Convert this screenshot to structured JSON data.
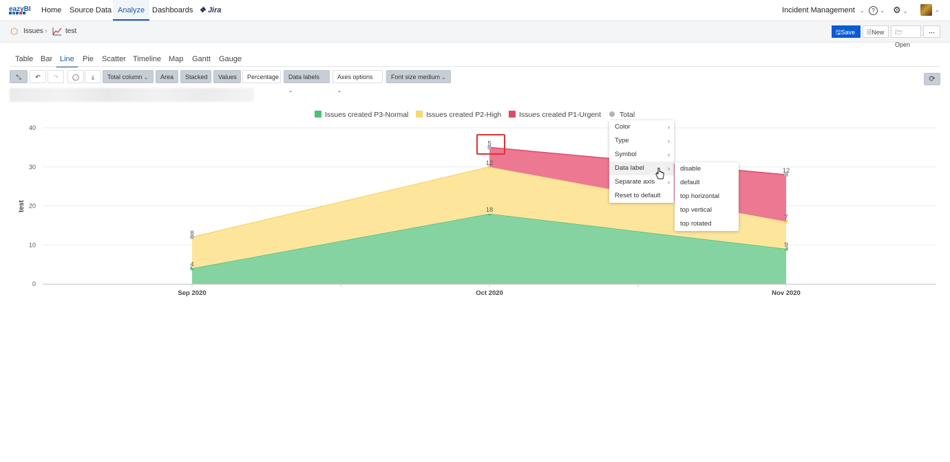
{
  "app": {
    "logo_text": "eazyBI",
    "nav": [
      "Home",
      "Source Data",
      "Analyze",
      "Dashboards",
      "Jira"
    ],
    "active_nav": "Analyze",
    "account": "Incident Management"
  },
  "breadcrumb": {
    "root": "Issues",
    "report": "test"
  },
  "report_actions": {
    "save": "Save",
    "new": "New",
    "open": "Open",
    "more": "⋯"
  },
  "tabs": [
    "Table",
    "Bar",
    "Line",
    "Pie",
    "Scatter",
    "Timeline",
    "Map",
    "Gantt",
    "Gauge"
  ],
  "active_tab": "Line",
  "toolbar": {
    "total_column": "Total column",
    "area": "Area",
    "stacked": "Stacked",
    "values": "Values",
    "percentage": "Percentage",
    "data_labels": "Data labels",
    "axes_options": "Axes options",
    "font_size": "Font size medium"
  },
  "context_menu": {
    "items": [
      "Color",
      "Type",
      "Symbol",
      "Data label",
      "Separate axis",
      "Reset to default"
    ],
    "submenu": [
      "disable",
      "default",
      "top horizontal",
      "top vertical",
      "top rotated"
    ]
  },
  "chart_data": {
    "type": "area",
    "stacked": true,
    "categories": [
      "Sep 2020",
      "Oct 2020",
      "Nov 2020"
    ],
    "ylabel": "test",
    "ylim": [
      0,
      40
    ],
    "yticks": [
      0,
      10,
      20,
      30,
      40
    ],
    "legend_position": "top",
    "series": [
      {
        "name": "Issues created P3-Normal",
        "color": "#5cc68a",
        "values": [
          4,
          18,
          9
        ],
        "labels": [
          "4",
          "18",
          "9"
        ]
      },
      {
        "name": "Issues created P2-High",
        "color": "#fde28a",
        "values": [
          8,
          12,
          7
        ],
        "labels": [
          "8",
          "12",
          "7"
        ]
      },
      {
        "name": "Issues created P1-Urgent",
        "color": "#e5546f",
        "values": [
          null,
          5,
          12
        ],
        "labels": [
          "",
          "5",
          "12"
        ]
      }
    ],
    "total": {
      "name": "Total",
      "color": "#b0b3b8",
      "values": [
        12,
        35,
        28
      ]
    }
  }
}
